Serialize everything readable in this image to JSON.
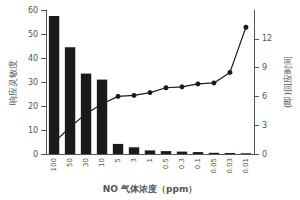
{
  "chart_data": {
    "type": "bar",
    "categories": [
      "100",
      "50",
      "30",
      "10",
      "5",
      "3",
      "1",
      "0.5",
      "0.3",
      "0.1",
      "0.05",
      "0.03",
      "0.01"
    ],
    "series": [
      {
        "type": "bar",
        "color": "#1a1a1a",
        "values": [
          57.5,
          44.5,
          33.5,
          31.0,
          4.2,
          2.8,
          1.5,
          1.2,
          1.0,
          0.8,
          0.5,
          0.4,
          0.3
        ]
      },
      {
        "type": "line",
        "axis": "y2",
        "color": "#1a1a1a",
        "marker": "circle",
        "values": [
          1.2,
          2.8,
          4.2,
          5.2,
          6.0,
          6.1,
          6.4,
          6.9,
          7.0,
          7.3,
          7.4,
          8.5,
          13.2
        ]
      }
    ],
    "xlabel": "NO 气体浓度（ppm）",
    "ylabel": "响应灵敏度",
    "y2label": "(即)回应时间",
    "ylim": [
      0,
      60
    ],
    "yticks": [
      0,
      10,
      20,
      30,
      40,
      50,
      60
    ],
    "y2lim": [
      0,
      15
    ],
    "y2ticks": [
      0,
      3,
      6,
      9,
      12
    ],
    "grid": false
  }
}
